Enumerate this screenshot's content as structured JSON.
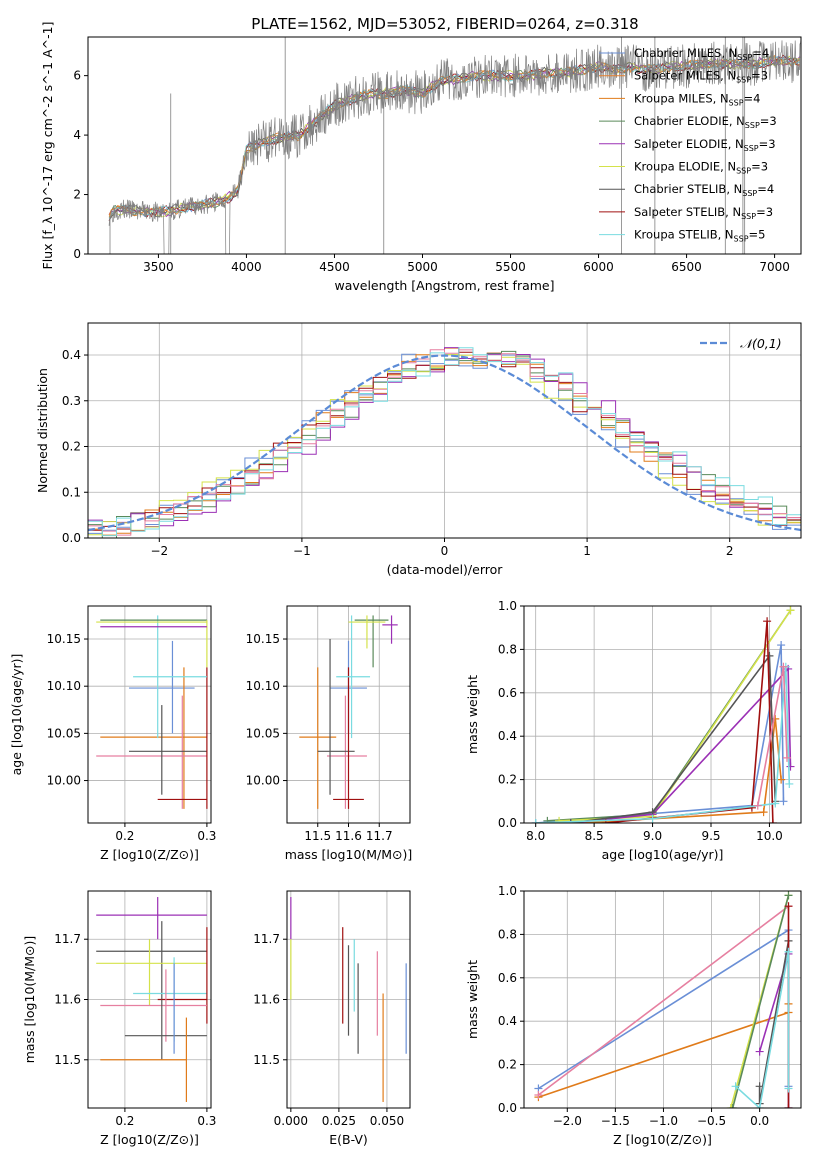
{
  "figure_title": "PLATE=1562, MJD=53052, FIBERID=0264, z=0.318",
  "colors": {
    "chabrier_miles": "#6a8fd6",
    "salpeter_miles": "#e57f2c",
    "kroupa_miles": "#e07b1a",
    "chabrier_elodie": "#5a8a5a",
    "salpeter_elodie": "#9b30b5",
    "kroupa_elodie": "#d4e24a",
    "chabrier_stelib": "#555555",
    "salpeter_stelib": "#a01010",
    "kroupa_stelib": "#7adbe0",
    "pink": "#e67fa0",
    "data": "#808080",
    "normal": "#5b8bd6"
  },
  "chart_data": [
    {
      "id": "spectrum",
      "type": "line",
      "title": "PLATE=1562, MJD=53052, FIBERID=0264, z=0.318",
      "xlabel": "wavelength [Angstrom, rest frame]",
      "ylabel": "Flux [f_λ 10^-17 erg cm^-2 s^-1 A^-1]",
      "xlim": [
        3100,
        7150
      ],
      "ylim": [
        0,
        7.3
      ],
      "xticks": [
        3500,
        4000,
        4500,
        5000,
        5500,
        6000,
        6500,
        7000
      ],
      "yticks": [
        0,
        2,
        4,
        6
      ],
      "grid": false,
      "legend": "top-right",
      "legend_entries": [
        "Chabrier MILES, N_SSP=4",
        "Salpeter MILES, N_SSP=3",
        "Kroupa MILES, N_SSP=4",
        "Chabrier ELODIE, N_SSP=3",
        "Salpeter ELODIE, N_SSP=3",
        "Kroupa ELODIE, N_SSP=3",
        "Chabrier STELIB, N_SSP=4",
        "Salpeter STELIB, N_SSP=3",
        "Kroupa STELIB, N_SSP=5"
      ],
      "continuum": {
        "x": [
          3220,
          3260,
          3300,
          3400,
          3500,
          3600,
          3700,
          3800,
          3900,
          3950,
          4000,
          4100,
          4200,
          4300,
          4400,
          4500,
          4600,
          4700,
          4800,
          4900,
          5000,
          5100,
          5200,
          5300,
          5400,
          5500,
          5600,
          5700,
          5800,
          5900,
          6000,
          6100,
          6200,
          6300,
          6400,
          6500,
          6600,
          6700,
          6800,
          6900,
          7000,
          7150
        ],
        "y": [
          1.3,
          1.5,
          1.5,
          1.45,
          1.4,
          1.5,
          1.6,
          1.7,
          1.9,
          2.1,
          3.5,
          3.8,
          3.9,
          4.0,
          4.5,
          5.0,
          5.2,
          5.4,
          5.4,
          5.5,
          5.4,
          5.8,
          5.9,
          6.0,
          6.0,
          6.0,
          6.0,
          6.1,
          6.1,
          6.2,
          6.3,
          6.2,
          6.3,
          6.2,
          6.3,
          6.3,
          6.4,
          6.4,
          6.4,
          6.4,
          6.5,
          6.5
        ]
      }
    },
    {
      "id": "residuals",
      "type": "line",
      "xlabel": "(data-model)/error",
      "ylabel": "Normed distribution",
      "xlim": [
        -2.5,
        2.5
      ],
      "ylim": [
        0,
        0.47
      ],
      "xticks": [
        -2,
        -1,
        0,
        1,
        2
      ],
      "yticks": [
        0.0,
        0.1,
        0.2,
        0.3,
        0.4
      ],
      "grid": true,
      "legend": "top-right",
      "legend_entries": [
        "𝒩(0,1)"
      ]
    },
    {
      "id": "age_vs_Z",
      "type": "scatter",
      "xlabel": "Z [log10(Z/Z⊙)]",
      "ylabel": "age  [log10(age/yr)]",
      "xlim": [
        0.155,
        0.305
      ],
      "ylim": [
        9.955,
        10.185
      ],
      "xticks": [
        0.2,
        0.3
      ],
      "yticks": [
        10.0,
        10.05,
        10.1,
        10.15
      ],
      "grid": true,
      "points": [
        {
          "color": "chabrier_miles",
          "x": 0.258,
          "xerr": [
            0.205,
            0.285
          ],
          "y": 10.098,
          "yerr": [
            10.05,
            10.148
          ]
        },
        {
          "color": "kroupa_miles",
          "x": 0.272,
          "xerr": [
            0.17,
            0.3
          ],
          "y": 10.046,
          "yerr": [
            9.97,
            10.12
          ]
        },
        {
          "color": "pink",
          "x": 0.27,
          "xerr": [
            0.165,
            0.3
          ],
          "y": 10.026,
          "yerr": [
            9.97,
            10.09
          ]
        },
        {
          "color": "chabrier_stelib",
          "x": 0.245,
          "xerr": [
            0.205,
            0.3
          ],
          "y": 10.031,
          "yerr": [
            9.985,
            10.08
          ]
        },
        {
          "color": "salpeter_stelib",
          "x": 0.3,
          "xerr": [
            0.24,
            0.3
          ],
          "y": 9.98,
          "yerr": [
            9.97,
            10.12
          ]
        },
        {
          "color": "kroupa_stelib",
          "x": 0.24,
          "xerr": [
            0.21,
            0.3
          ],
          "y": 10.11,
          "yerr": [
            10.045,
            10.175
          ]
        },
        {
          "color": "chabrier_elodie",
          "x": 0.3,
          "xerr": [
            0.17,
            0.3
          ],
          "y": 10.17,
          "yerr": [
            10.17,
            10.17
          ]
        },
        {
          "color": "kroupa_elodie",
          "x": 0.3,
          "xerr": [
            0.165,
            0.3
          ],
          "y": 10.168,
          "yerr": [
            10.12,
            10.17
          ]
        },
        {
          "color": "salpeter_elodie",
          "x": 0.3,
          "xerr": [
            0.17,
            0.3
          ],
          "y": 10.163,
          "yerr": [
            10.163,
            10.163
          ]
        }
      ]
    },
    {
      "id": "age_vs_mass",
      "type": "scatter",
      "xlabel": "mass [log10(M/M⊙)]",
      "xlim": [
        11.4,
        11.8
      ],
      "ylim": [
        9.955,
        10.185
      ],
      "xticks": [
        11.5,
        11.6,
        11.7
      ],
      "yticks": [
        10.0,
        10.05,
        10.1,
        10.15
      ],
      "grid": true,
      "points": [
        {
          "color": "chabrier_miles",
          "x": 11.6,
          "xerr": [
            11.54,
            11.66
          ],
          "y": 10.098,
          "yerr": [
            10.05,
            10.148
          ]
        },
        {
          "color": "kroupa_miles",
          "x": 11.5,
          "xerr": [
            11.44,
            11.56
          ],
          "y": 10.046,
          "yerr": [
            9.97,
            10.12
          ]
        },
        {
          "color": "pink",
          "x": 11.59,
          "xerr": [
            11.53,
            11.66
          ],
          "y": 10.026,
          "yerr": [
            9.97,
            10.09
          ]
        },
        {
          "color": "chabrier_stelib",
          "x": 11.54,
          "xerr": [
            11.5,
            11.62
          ],
          "y": 10.031,
          "yerr": [
            9.985,
            10.15
          ]
        },
        {
          "color": "salpeter_stelib",
          "x": 11.6,
          "xerr": [
            11.55,
            11.65
          ],
          "y": 9.98,
          "yerr": [
            9.97,
            10.12
          ]
        },
        {
          "color": "kroupa_stelib",
          "x": 11.61,
          "xerr": [
            11.56,
            11.67
          ],
          "y": 10.11,
          "yerr": [
            10.045,
            10.175
          ]
        },
        {
          "color": "chabrier_elodie",
          "x": 11.68,
          "xerr": [
            11.62,
            11.73
          ],
          "y": 10.17,
          "yerr": [
            10.12,
            10.175
          ]
        },
        {
          "color": "kroupa_elodie",
          "x": 11.66,
          "xerr": [
            11.6,
            11.72
          ],
          "y": 10.168,
          "yerr": [
            10.14,
            10.175
          ]
        },
        {
          "color": "salpeter_elodie",
          "x": 11.74,
          "xerr": [
            11.71,
            11.76
          ],
          "y": 10.165,
          "yerr": [
            10.145,
            10.175
          ]
        }
      ]
    },
    {
      "id": "weight_vs_age",
      "type": "line",
      "xlabel": "age  [log10(age/yr)]",
      "ylabel": "mass weight",
      "xlim": [
        7.9,
        10.27
      ],
      "ylim": [
        0,
        1.0
      ],
      "xticks": [
        8.0,
        8.5,
        9.0,
        9.5,
        10.0
      ],
      "yticks": [
        0.0,
        0.2,
        0.4,
        0.6,
        0.8,
        1.0
      ],
      "grid": true,
      "series": [
        {
          "color": "chabrier_miles",
          "x": [
            8.0,
            9.85,
            10.1,
            10.12
          ],
          "y": [
            0.0,
            0.08,
            0.82,
            0.1
          ]
        },
        {
          "color": "kroupa_miles",
          "x": [
            8.4,
            9.95,
            10.05,
            10.1
          ],
          "y": [
            0.0,
            0.05,
            0.48,
            0.2
          ]
        },
        {
          "color": "chabrier_elodie",
          "x": [
            8.1,
            9.0,
            10.18
          ],
          "y": [
            0.01,
            0.04,
            0.98
          ]
        },
        {
          "color": "kroupa_elodie",
          "x": [
            8.2,
            9.0,
            10.18
          ],
          "y": [
            0.01,
            0.03,
            0.98
          ]
        },
        {
          "color": "salpeter_elodie",
          "x": [
            8.3,
            9.0,
            10.16,
            10.18
          ],
          "y": [
            0.0,
            0.04,
            0.71,
            0.26
          ]
        },
        {
          "color": "chabrier_stelib",
          "x": [
            8.3,
            9.0,
            10.0,
            10.05
          ],
          "y": [
            0.0,
            0.05,
            0.77,
            0.1
          ]
        },
        {
          "color": "salpeter_stelib",
          "x": [
            8.6,
            9.85,
            9.98,
            10.03
          ],
          "y": [
            0.0,
            0.07,
            0.93,
            0.0
          ]
        },
        {
          "color": "kroupa_stelib",
          "x": [
            8.0,
            9.0,
            10.05,
            10.14,
            10.17
          ],
          "y": [
            0.0,
            0.02,
            0.09,
            0.72,
            0.18
          ]
        },
        {
          "color": "pink",
          "x": [
            9.9,
            10.12,
            10.15
          ],
          "y": [
            0.08,
            0.72,
            0.3
          ]
        }
      ]
    },
    {
      "id": "mass_vs_Z",
      "type": "scatter",
      "xlabel": "Z [log10(Z/Z⊙)]",
      "ylabel": "mass [log10(M/M⊙)]",
      "xlim": [
        0.155,
        0.305
      ],
      "ylim": [
        11.42,
        11.78
      ],
      "xticks": [
        0.2,
        0.3
      ],
      "yticks": [
        11.5,
        11.6,
        11.7
      ],
      "grid": true,
      "points": [
        {
          "color": "salpeter_elodie",
          "x": 0.24,
          "xerr": [
            0.165,
            0.3
          ],
          "y": 11.74,
          "yerr": [
            11.7,
            11.77
          ]
        },
        {
          "color": "chabrier_stelib",
          "x": 0.245,
          "xerr": [
            0.165,
            0.3
          ],
          "y": 11.68,
          "yerr": [
            11.6,
            11.73
          ]
        },
        {
          "color": "kroupa_elodie",
          "x": 0.23,
          "xerr": [
            0.165,
            0.3
          ],
          "y": 11.66,
          "yerr": [
            11.59,
            11.7
          ]
        },
        {
          "color": "kroupa_stelib",
          "x": 0.26,
          "xerr": [
            0.21,
            0.3
          ],
          "y": 11.61,
          "yerr": [
            11.53,
            11.67
          ]
        },
        {
          "color": "salpeter_stelib",
          "x": 0.3,
          "xerr": [
            0.24,
            0.3
          ],
          "y": 11.6,
          "yerr": [
            11.56,
            11.72
          ]
        },
        {
          "color": "pink",
          "x": 0.25,
          "xerr": [
            0.17,
            0.3
          ],
          "y": 11.59,
          "yerr": [
            11.53,
            11.65
          ]
        },
        {
          "color": "chabrier_stelib",
          "x": 0.245,
          "xerr": [
            0.2,
            0.3
          ],
          "y": 11.54,
          "yerr": [
            11.5,
            11.6
          ]
        },
        {
          "color": "kroupa_miles",
          "x": 0.275,
          "xerr": [
            0.17,
            0.275
          ],
          "y": 11.5,
          "yerr": [
            11.43,
            11.57
          ]
        },
        {
          "color": "chabrier_miles",
          "x": 0.26,
          "xerr": [
            0.26,
            0.26
          ],
          "y": 11.55,
          "yerr": [
            11.51,
            11.66
          ]
        }
      ]
    },
    {
      "id": "mass_vs_EBV",
      "type": "scatter",
      "xlabel": "E(B-V)",
      "xlim": [
        -0.002,
        0.062
      ],
      "ylim": [
        11.42,
        11.78
      ],
      "xticks": [
        0.0,
        0.025,
        0.05
      ],
      "yticks": [
        11.5,
        11.6,
        11.7
      ],
      "grid": true,
      "points": [
        {
          "color": "salpeter_elodie",
          "x": 0.0,
          "yerr": [
            11.7,
            11.77
          ]
        },
        {
          "color": "kroupa_elodie",
          "x": 0.0,
          "yerr": [
            11.6,
            11.7
          ]
        },
        {
          "color": "salpeter_stelib",
          "x": 0.027,
          "yerr": [
            11.56,
            11.72
          ]
        },
        {
          "color": "chabrier_stelib",
          "x": 0.03,
          "yerr": [
            11.54,
            11.69
          ]
        },
        {
          "color": "kroupa_stelib",
          "x": 0.033,
          "yerr": [
            11.58,
            11.7
          ]
        },
        {
          "color": "chabrier_stelib",
          "x": 0.035,
          "yerr": [
            11.51,
            11.66
          ]
        },
        {
          "color": "pink",
          "x": 0.045,
          "yerr": [
            11.54,
            11.68
          ]
        },
        {
          "color": "kroupa_miles",
          "x": 0.048,
          "yerr": [
            11.43,
            11.61
          ]
        },
        {
          "color": "chabrier_miles",
          "x": 0.06,
          "yerr": [
            11.51,
            11.66
          ]
        }
      ]
    },
    {
      "id": "weight_vs_Z",
      "type": "line",
      "xlabel": "Z [log10(Z/Z⊙)]",
      "ylabel": "mass weight",
      "xlim": [
        -2.45,
        0.43
      ],
      "ylim": [
        0,
        1.0
      ],
      "xticks": [
        -2.0,
        -1.5,
        -1.0,
        -0.5,
        0.0
      ],
      "yticks": [
        0.0,
        0.2,
        0.4,
        0.6,
        0.8,
        1.0
      ],
      "grid": true,
      "series": [
        {
          "color": "chabrier_miles",
          "x": [
            -2.3,
            0.3,
            0.3
          ],
          "y": [
            0.09,
            0.82,
            0.1
          ]
        },
        {
          "color": "kroupa_miles",
          "x": [
            -2.3,
            0.3,
            0.3
          ],
          "y": [
            0.05,
            0.44,
            0.48
          ]
        },
        {
          "color": "pink",
          "x": [
            -2.3,
            0.3
          ],
          "y": [
            0.06,
            0.93
          ]
        },
        {
          "color": "kroupa_elodie",
          "x": [
            -0.3,
            0.3
          ],
          "y": [
            0.0,
            0.98
          ]
        },
        {
          "color": "chabrier_elodie",
          "x": [
            -0.28,
            0.3
          ],
          "y": [
            0.0,
            0.98
          ]
        },
        {
          "color": "salpeter_elodie",
          "x": [
            0.0,
            0.3,
            0.3
          ],
          "y": [
            0.26,
            0.71,
            0.0
          ]
        },
        {
          "color": "chabrier_stelib",
          "x": [
            0.0,
            0.0,
            0.3
          ],
          "y": [
            0.1,
            0.02,
            0.77
          ]
        },
        {
          "color": "salpeter_stelib",
          "x": [
            0.3,
            0.3
          ],
          "y": [
            0.0,
            0.93
          ]
        },
        {
          "color": "kroupa_stelib",
          "x": [
            -0.25,
            0.0,
            0.3,
            0.3
          ],
          "y": [
            0.1,
            0.0,
            0.72,
            0.09
          ]
        }
      ]
    }
  ]
}
